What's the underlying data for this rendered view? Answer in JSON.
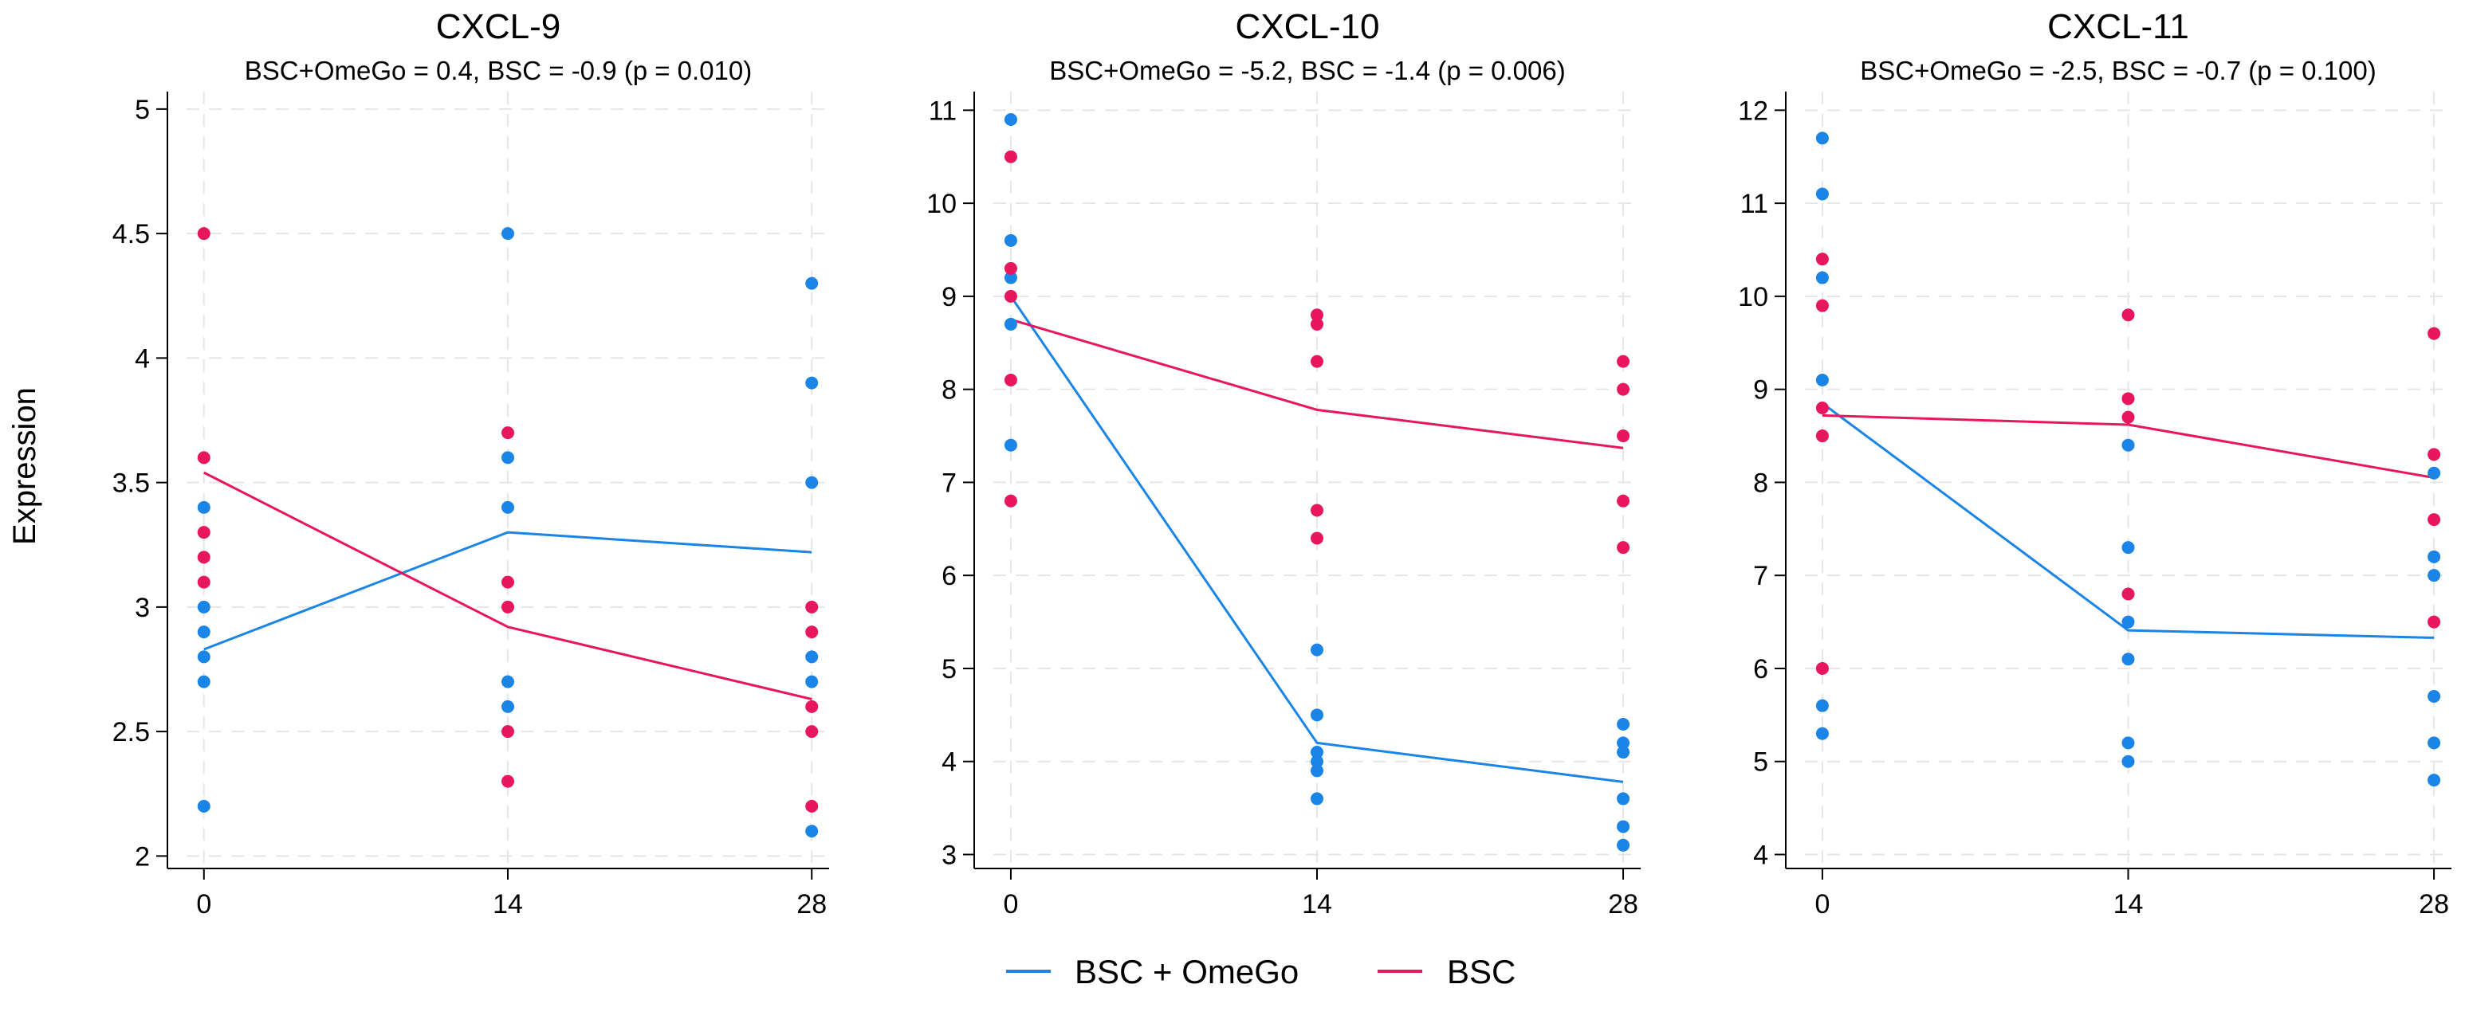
{
  "figure": {
    "ylabel": "Expression",
    "legend": [
      {
        "name": "BSC + OmeGo",
        "color": "#1a85e6"
      },
      {
        "name": "BSC",
        "color": "#e8175d"
      }
    ]
  },
  "chart_data": [
    {
      "type": "scatter",
      "title": "CXCL-9",
      "subtitle": "BSC+OmeGo = 0.4,  BSC = -0.9 (p = 0.010)",
      "xlabel": "",
      "ylabel": "Expression",
      "xticks": [
        0,
        14,
        28
      ],
      "xlim": [
        -0.8,
        28.8
      ],
      "yticks": [
        2,
        2.5,
        3,
        3.5,
        4,
        4.5,
        5
      ],
      "ytick_labels": [
        "2",
        "2.5",
        "3",
        "3.5",
        "4",
        "4.5",
        "5"
      ],
      "ylim": [
        1.95,
        5.07
      ],
      "grid": true,
      "series": [
        {
          "name": "BSC + OmeGo",
          "color": "#1a85e6",
          "points": {
            "0": [
              3.4,
              3.0,
              2.9,
              2.8,
              2.7,
              2.2
            ],
            "14": [
              4.5,
              3.6,
              3.4,
              2.7,
              2.6
            ],
            "28": [
              4.3,
              3.9,
              3.5,
              2.8,
              2.7,
              2.1
            ]
          },
          "line": [
            2.83,
            3.3,
            3.22
          ]
        },
        {
          "name": "BSC",
          "color": "#e8175d",
          "points": {
            "0": [
              4.5,
              3.6,
              3.3,
              3.2,
              3.1
            ],
            "14": [
              3.7,
              3.1,
              3.0,
              2.5,
              2.3
            ],
            "28": [
              3.0,
              2.9,
              2.6,
              2.5,
              2.2
            ]
          },
          "line": [
            3.54,
            2.92,
            2.63
          ]
        }
      ]
    },
    {
      "type": "scatter",
      "title": "CXCL-10",
      "subtitle": "BSC+OmeGo = -5.2,  BSC = -1.4 (p = 0.006)",
      "xlabel": "",
      "ylabel": "Expression",
      "xticks": [
        0,
        14,
        28
      ],
      "xlim": [
        -0.8,
        28.8
      ],
      "yticks": [
        3,
        4,
        5,
        6,
        7,
        8,
        9,
        10,
        11
      ],
      "ytick_labels": [
        "3",
        "4",
        "5",
        "6",
        "7",
        "8",
        "9",
        "10",
        "11"
      ],
      "ylim": [
        2.85,
        11.2
      ],
      "grid": true,
      "series": [
        {
          "name": "BSC + OmeGo",
          "color": "#1a85e6",
          "points": {
            "0": [
              10.9,
              9.6,
              9.2,
              8.7,
              7.4
            ],
            "14": [
              5.2,
              4.5,
              4.1,
              4.0,
              3.9,
              3.6
            ],
            "28": [
              4.4,
              4.2,
              4.1,
              3.6,
              3.3,
              3.1
            ]
          },
          "line": [
            9.0,
            4.2,
            3.78
          ]
        },
        {
          "name": "BSC",
          "color": "#e8175d",
          "points": {
            "0": [
              10.5,
              9.3,
              9.0,
              8.1,
              6.8
            ],
            "14": [
              8.8,
              8.7,
              8.3,
              6.7,
              6.4
            ],
            "28": [
              8.3,
              8.0,
              7.5,
              6.8,
              6.3
            ]
          },
          "line": [
            8.75,
            7.78,
            7.37
          ]
        }
      ]
    },
    {
      "type": "scatter",
      "title": "CXCL-11",
      "subtitle": "BSC+OmeGo = -2.5,  BSC = -0.7 (p = 0.100)",
      "xlabel": "",
      "ylabel": "Expression",
      "xticks": [
        0,
        14,
        28
      ],
      "xlim": [
        -0.8,
        28.8
      ],
      "yticks": [
        4,
        5,
        6,
        7,
        8,
        9,
        10,
        11,
        12
      ],
      "ytick_labels": [
        "4",
        "5",
        "6",
        "7",
        "8",
        "9",
        "10",
        "11",
        "12"
      ],
      "ylim": [
        3.85,
        12.2
      ],
      "grid": true,
      "series": [
        {
          "name": "BSC + OmeGo",
          "color": "#1a85e6",
          "points": {
            "0": [
              11.7,
              11.1,
              10.2,
              9.1,
              5.6,
              5.3
            ],
            "14": [
              8.4,
              7.3,
              6.5,
              6.1,
              5.2,
              5.0
            ],
            "28": [
              8.1,
              7.2,
              7.0,
              5.7,
              5.2,
              4.8
            ]
          },
          "line": [
            8.85,
            6.41,
            6.33
          ]
        },
        {
          "name": "BSC",
          "color": "#e8175d",
          "points": {
            "0": [
              10.4,
              9.9,
              8.8,
              8.5,
              6.0
            ],
            "14": [
              9.8,
              8.9,
              8.7,
              6.8
            ],
            "28": [
              9.6,
              8.3,
              7.6,
              6.5
            ]
          },
          "line": [
            8.72,
            8.62,
            8.05
          ]
        }
      ]
    }
  ]
}
